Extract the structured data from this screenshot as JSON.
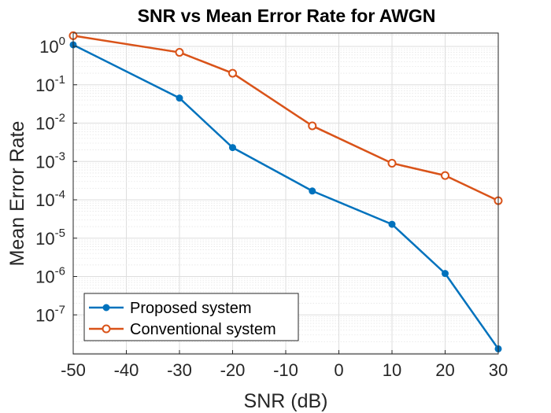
{
  "chart_data": {
    "type": "line",
    "title": "SNR vs Mean Error Rate for AWGN",
    "xlabel": "SNR (dB)",
    "ylabel": "Mean Error Rate",
    "xlim": [
      -50,
      30
    ],
    "ylim": [
      1e-08,
      2
    ],
    "yscale": "log",
    "grid": true,
    "minor_grid": true,
    "legend_position": "bottom-left",
    "xticks": [
      -50,
      -40,
      -30,
      -20,
      -10,
      0,
      10,
      20,
      30
    ],
    "yticks": [
      {
        "base": "10",
        "exp": "0",
        "value": 1
      },
      {
        "base": "10",
        "exp": "-1",
        "value": 0.1
      },
      {
        "base": "10",
        "exp": "-2",
        "value": 0.01
      },
      {
        "base": "10",
        "exp": "-3",
        "value": 0.001
      },
      {
        "base": "10",
        "exp": "-4",
        "value": 0.0001
      },
      {
        "base": "10",
        "exp": "-5",
        "value": 1e-05
      },
      {
        "base": "10",
        "exp": "-6",
        "value": 1e-06
      },
      {
        "base": "10",
        "exp": "-7",
        "value": 1e-07
      }
    ],
    "series": [
      {
        "name": "Proposed system",
        "color": "#0072BD",
        "marker": "filled-circle",
        "x": [
          -50,
          -30,
          -20,
          -5,
          10,
          20,
          30
        ],
        "y": [
          1.1,
          0.045,
          0.0023,
          0.00017,
          2.3e-05,
          1.2e-06,
          1.3e-08
        ]
      },
      {
        "name": "Conventional system",
        "color": "#D95319",
        "marker": "open-circle",
        "x": [
          -50,
          -30,
          -20,
          -5,
          10,
          20,
          30
        ],
        "y": [
          1.9,
          0.7,
          0.2,
          0.0085,
          0.0009,
          0.00043,
          9.5e-05
        ]
      }
    ]
  }
}
